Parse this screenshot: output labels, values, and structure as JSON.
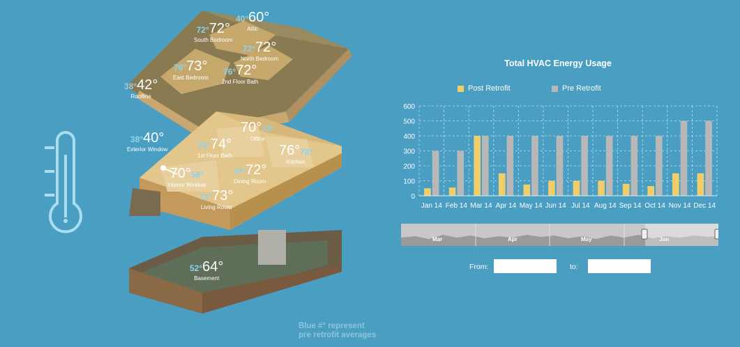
{
  "rooms": [
    {
      "id": "attic",
      "name": "Attic",
      "pre": "40°",
      "post": "60°"
    },
    {
      "id": "south-bedroom",
      "name": "South Bedroom",
      "pre": "72°",
      "post": "72°"
    },
    {
      "id": "north-bedroom",
      "name": "North Bedroom",
      "pre": "72°",
      "post": "72°"
    },
    {
      "id": "east-bedroom",
      "name": "East Bedroom",
      "pre": "76°",
      "post": "73°"
    },
    {
      "id": "second-floor-bath",
      "name": "2nd Floor Bath",
      "pre": "76°",
      "post": "72°"
    },
    {
      "id": "roofline",
      "name": "Roofline",
      "pre": "38°",
      "post": "42°"
    },
    {
      "id": "exterior-window",
      "name": "Exterior Window",
      "pre": "38°",
      "post": "40°"
    },
    {
      "id": "office",
      "name": "Office",
      "pre": "73°",
      "post": "70°"
    },
    {
      "id": "first-floor-bath",
      "name": "1st Floor Bath",
      "pre": "75°",
      "post": "74°"
    },
    {
      "id": "kitchen",
      "name": "Kitchen",
      "pre": "78°",
      "post": "76°"
    },
    {
      "id": "interior-window",
      "name": "Interior Window",
      "pre": "56°",
      "post": "70°"
    },
    {
      "id": "dining-room",
      "name": "Dining Room",
      "pre": "74°",
      "post": "72°"
    },
    {
      "id": "living-room",
      "name": "Living Room",
      "pre": "71°",
      "post": "73°"
    },
    {
      "id": "basement",
      "name": "Basement",
      "pre": "52°",
      "post": "64°"
    }
  ],
  "note": {
    "line1": "Blue #° represent",
    "line2": "pre retrofit averages"
  },
  "chart_data": {
    "type": "bar",
    "title": "Total HVAC Energy Usage",
    "categories": [
      "Jan 14",
      "Feb 14",
      "Mar 14",
      "Apr 14",
      "May 14",
      "Jun 14",
      "Jul 14",
      "Aug 14",
      "Sep 14",
      "Oct 14",
      "Nov 14",
      "Dec 14"
    ],
    "series": [
      {
        "name": "Post Retrofit",
        "color": "#f2ce6b",
        "values": [
          50,
          55,
          400,
          150,
          75,
          100,
          100,
          100,
          80,
          65,
          150,
          150
        ]
      },
      {
        "name": "Pre Retrofit",
        "color": "#b8b8b8",
        "values": [
          300,
          300,
          400,
          400,
          400,
          400,
          400,
          400,
          400,
          400,
          500,
          500
        ]
      }
    ],
    "ylim": [
      0,
      600
    ],
    "yticks": [
      0,
      100,
      200,
      300,
      400,
      500,
      600
    ],
    "grid": true,
    "legend": "top"
  },
  "navigator": {
    "labels": [
      "Mar",
      "Apr",
      "May",
      "Jun"
    ]
  },
  "date_range": {
    "from_label": "From:",
    "to_label": "to:",
    "from_value": "",
    "to_value": ""
  }
}
